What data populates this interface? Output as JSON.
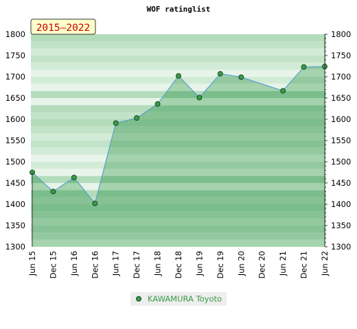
{
  "chart_data": {
    "type": "area",
    "title": "WOF ratinglist",
    "period_badge": "2015–2022",
    "xlabel": "",
    "ylabel": "",
    "ylim": [
      1300,
      1800
    ],
    "y_ticks": [
      1300,
      1350,
      1400,
      1450,
      1500,
      1550,
      1600,
      1650,
      1700,
      1750,
      1800
    ],
    "x_ticks": [
      "Jun 15",
      "Dec 15",
      "Jun 16",
      "Dec 16",
      "Jun 17",
      "Dec 17",
      "Jun 18",
      "Dec 18",
      "Jun 19",
      "Dec 19",
      "Jun 20",
      "Dec 20",
      "Jun 21",
      "Dec 21",
      "Jun 22"
    ],
    "grid": true,
    "legend_position": "bottom-center",
    "series": [
      {
        "name": "KAWAMURA Toyoto",
        "color": "#5aa0d0",
        "marker_color": "#3a9a4a",
        "fill_color": "#5cb36a",
        "points": [
          {
            "x": "Jun 15",
            "y": 1475
          },
          {
            "x": "Dec 15",
            "y": 1430
          },
          {
            "x": "Jun 16",
            "y": 1463
          },
          {
            "x": "Dec 16",
            "y": 1402
          },
          {
            "x": "Jun 17",
            "y": 1591
          },
          {
            "x": "Dec 17",
            "y": 1603
          },
          {
            "x": "Jun 18",
            "y": 1636
          },
          {
            "x": "Dec 18",
            "y": 1702
          },
          {
            "x": "Jun 19",
            "y": 1651
          },
          {
            "x": "Dec 19",
            "y": 1707
          },
          {
            "x": "Jun 20",
            "y": 1699
          },
          {
            "x": "Jun 21",
            "y": 1667
          },
          {
            "x": "Dec 21",
            "y": 1723
          },
          {
            "x": "Jun 22",
            "y": 1724
          }
        ]
      }
    ]
  }
}
